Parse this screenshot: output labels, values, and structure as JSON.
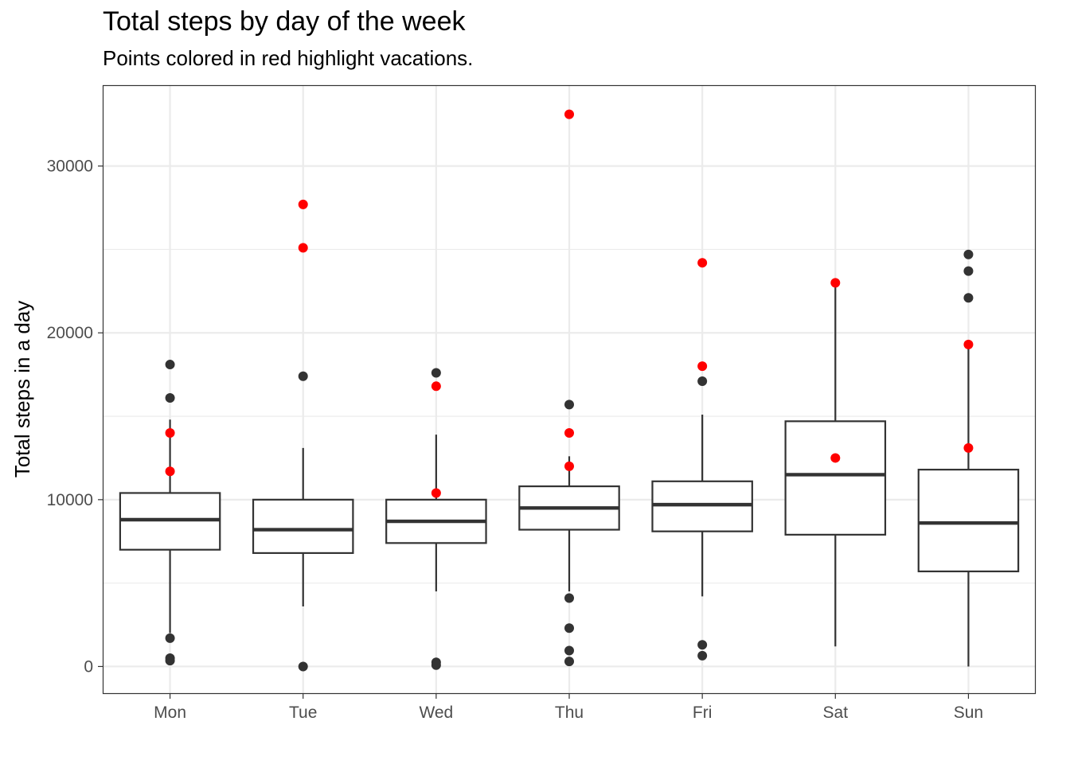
{
  "chart_data": {
    "type": "box",
    "title": "Total steps by day of the week",
    "subtitle": "Points colored in red highlight vacations.",
    "xlabel": "",
    "ylabel": "Total steps in a day",
    "ylim": [
      -1600,
      34800
    ],
    "yticks": [
      0,
      10000,
      20000,
      30000
    ],
    "grid": true,
    "colors": {
      "box": "#333333",
      "normal_point": "#333333",
      "vacation_point": "#ff0000",
      "grid": "#ebebeb",
      "panel_border": "#333333"
    },
    "categories": [
      "Mon",
      "Tue",
      "Wed",
      "Thu",
      "Fri",
      "Sat",
      "Sun"
    ],
    "boxes": [
      {
        "day": "Mon",
        "q1": 7000,
        "median": 8800,
        "q3": 10400,
        "whisker_low": 2000,
        "whisker_high": 14800
      },
      {
        "day": "Tue",
        "q1": 6800,
        "median": 8200,
        "q3": 10000,
        "whisker_low": 3600,
        "whisker_high": 13100
      },
      {
        "day": "Wed",
        "q1": 7400,
        "median": 8700,
        "q3": 10000,
        "whisker_low": 4500,
        "whisker_high": 13900
      },
      {
        "day": "Thu",
        "q1": 8200,
        "median": 9500,
        "q3": 10800,
        "whisker_low": 4500,
        "whisker_high": 12600
      },
      {
        "day": "Fri",
        "q1": 8100,
        "median": 9700,
        "q3": 11100,
        "whisker_low": 4200,
        "whisker_high": 15100
      },
      {
        "day": "Sat",
        "q1": 7900,
        "median": 11500,
        "q3": 14700,
        "whisker_low": 1200,
        "whisker_high": 23000
      },
      {
        "day": "Sun",
        "q1": 5700,
        "median": 8600,
        "q3": 11800,
        "whisker_low": 0,
        "whisker_high": 19300
      }
    ],
    "points": [
      {
        "day": "Mon",
        "y": 18100,
        "vacation": false
      },
      {
        "day": "Mon",
        "y": 16100,
        "vacation": false
      },
      {
        "day": "Mon",
        "y": 14000,
        "vacation": true
      },
      {
        "day": "Mon",
        "y": 11700,
        "vacation": true
      },
      {
        "day": "Mon",
        "y": 1700,
        "vacation": false
      },
      {
        "day": "Mon",
        "y": 500,
        "vacation": false
      },
      {
        "day": "Mon",
        "y": 350,
        "vacation": false
      },
      {
        "day": "Tue",
        "y": 27700,
        "vacation": true
      },
      {
        "day": "Tue",
        "y": 25100,
        "vacation": true
      },
      {
        "day": "Tue",
        "y": 17400,
        "vacation": false
      },
      {
        "day": "Tue",
        "y": 0,
        "vacation": false
      },
      {
        "day": "Wed",
        "y": 17600,
        "vacation": false
      },
      {
        "day": "Wed",
        "y": 16800,
        "vacation": true
      },
      {
        "day": "Wed",
        "y": 10400,
        "vacation": true
      },
      {
        "day": "Wed",
        "y": 250,
        "vacation": false
      },
      {
        "day": "Wed",
        "y": 80,
        "vacation": false
      },
      {
        "day": "Thu",
        "y": 33100,
        "vacation": true
      },
      {
        "day": "Thu",
        "y": 15700,
        "vacation": false
      },
      {
        "day": "Thu",
        "y": 14000,
        "vacation": true
      },
      {
        "day": "Thu",
        "y": 12000,
        "vacation": true
      },
      {
        "day": "Thu",
        "y": 4100,
        "vacation": false
      },
      {
        "day": "Thu",
        "y": 2300,
        "vacation": false
      },
      {
        "day": "Thu",
        "y": 950,
        "vacation": false
      },
      {
        "day": "Thu",
        "y": 300,
        "vacation": false
      },
      {
        "day": "Fri",
        "y": 24200,
        "vacation": true
      },
      {
        "day": "Fri",
        "y": 18000,
        "vacation": true
      },
      {
        "day": "Fri",
        "y": 17100,
        "vacation": false
      },
      {
        "day": "Fri",
        "y": 1300,
        "vacation": false
      },
      {
        "day": "Fri",
        "y": 650,
        "vacation": false
      },
      {
        "day": "Sat",
        "y": 23000,
        "vacation": true
      },
      {
        "day": "Sat",
        "y": 12500,
        "vacation": true
      },
      {
        "day": "Sun",
        "y": 24700,
        "vacation": false
      },
      {
        "day": "Sun",
        "y": 23700,
        "vacation": false
      },
      {
        "day": "Sun",
        "y": 22100,
        "vacation": false
      },
      {
        "day": "Sun",
        "y": 19300,
        "vacation": true
      },
      {
        "day": "Sun",
        "y": 13100,
        "vacation": true
      }
    ]
  }
}
